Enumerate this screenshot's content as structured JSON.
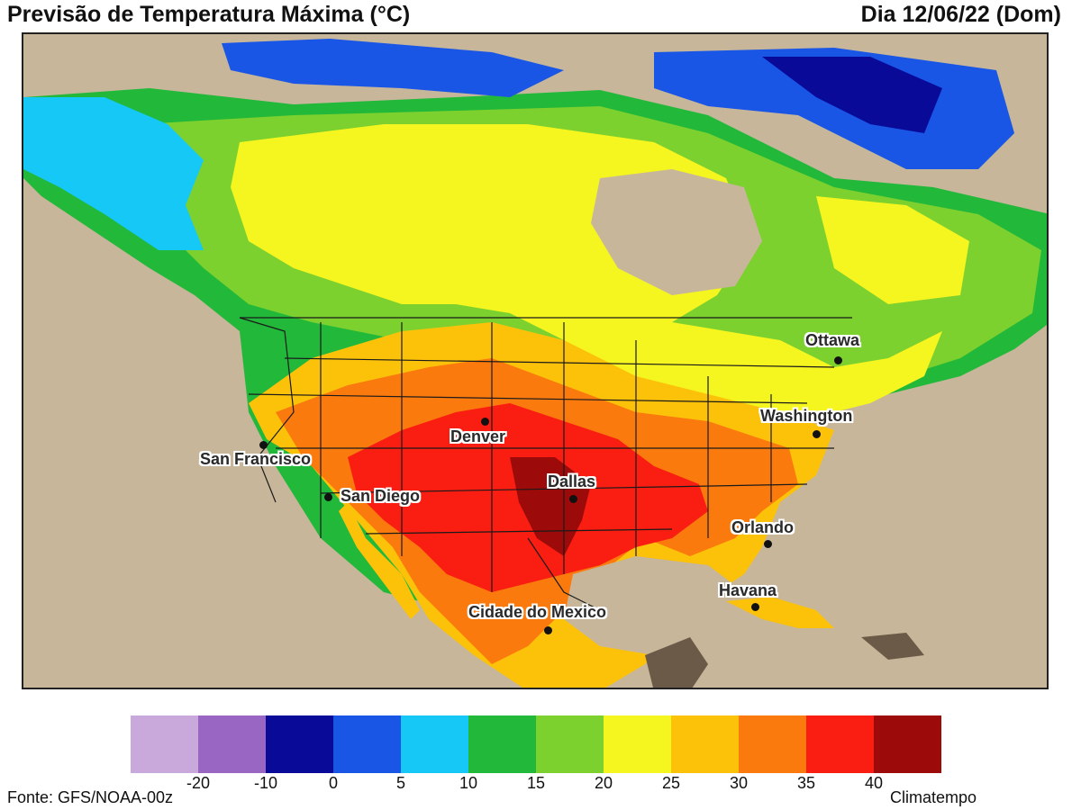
{
  "header": {
    "title": "Previsão de Temperatura Máxima (°C)",
    "date": "Dia 12/06/22 (Dom)"
  },
  "footer": {
    "source": "Fonte: GFS/NOAA-00z",
    "brand": "Climatempo"
  },
  "legend": {
    "colors": [
      "#c9a8dc",
      "#9966c4",
      "#0a0a99",
      "#1a56e6",
      "#16c8f5",
      "#22b83a",
      "#7cd12e",
      "#f5f520",
      "#fcc20a",
      "#fb7a0d",
      "#f91d12",
      "#9c0a0a"
    ],
    "ticks": [
      "-20",
      "-10",
      "0",
      "5",
      "10",
      "15",
      "20",
      "25",
      "30",
      "35",
      "40"
    ]
  },
  "cities": [
    {
      "name": "Ottawa"
    },
    {
      "name": "Washington"
    },
    {
      "name": "Denver"
    },
    {
      "name": "San Francisco"
    },
    {
      "name": "San Diego"
    },
    {
      "name": "Dallas"
    },
    {
      "name": "Orlando"
    },
    {
      "name": "Havana"
    },
    {
      "name": "Cidade do Mexico"
    }
  ]
}
